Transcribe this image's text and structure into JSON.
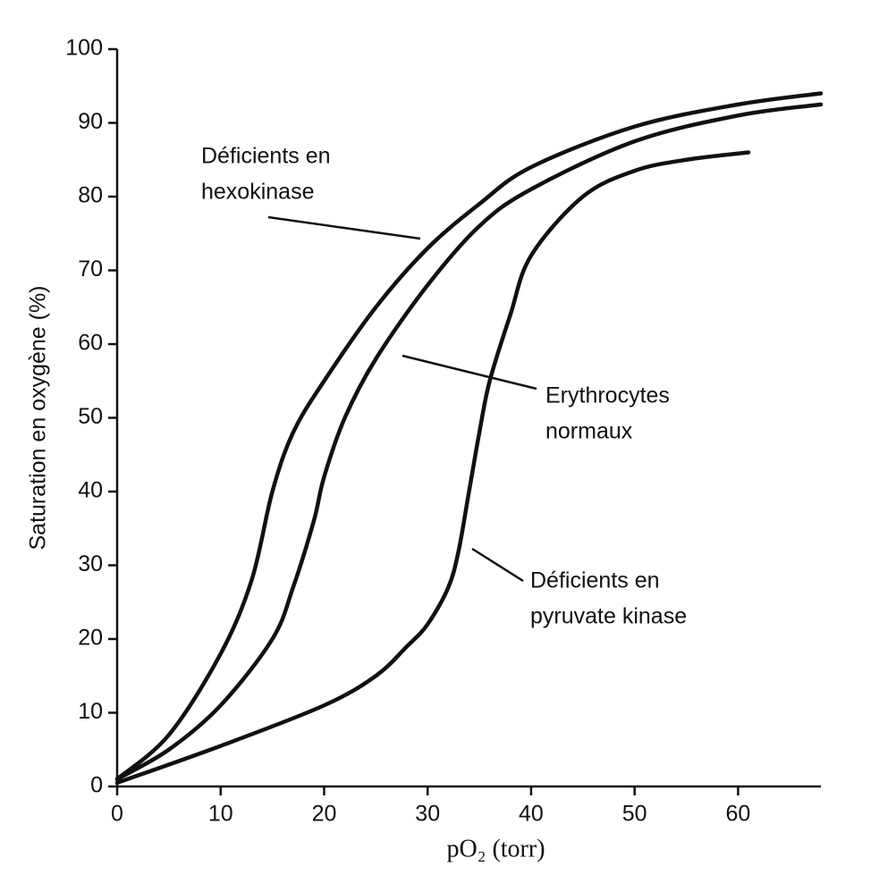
{
  "chart_data": {
    "type": "line",
    "xlabel": "pO₂ (torr)",
    "ylabel": "Saturation en oxygène (%)",
    "xlim": [
      0,
      68
    ],
    "ylim": [
      0,
      100
    ],
    "xticks": [
      0,
      10,
      20,
      30,
      40,
      50,
      60
    ],
    "yticks": [
      0,
      10,
      20,
      30,
      40,
      50,
      60,
      70,
      80,
      90,
      100
    ],
    "grid": false,
    "series": [
      {
        "name": "Déficients en hexokinase",
        "color": "#111111",
        "x": [
          0,
          5,
          10,
          13,
          15,
          17,
          20,
          25,
          30,
          35,
          40,
          50,
          60,
          68
        ],
        "values": [
          1,
          7,
          18,
          28,
          40,
          48,
          55,
          65,
          73,
          79,
          84,
          89.5,
          92.5,
          94
        ]
      },
      {
        "name": "Erythrocytes normaux",
        "color": "#111111",
        "x": [
          0,
          5,
          10,
          15,
          17,
          19,
          20,
          22,
          25,
          30,
          35,
          40,
          50,
          60,
          68
        ],
        "values": [
          1,
          5,
          11,
          20,
          27,
          36,
          42,
          50,
          58,
          68,
          76,
          81,
          87.5,
          91,
          92.5
        ]
      },
      {
        "name": "Déficients en pyruvate kinase",
        "color": "#111111",
        "x": [
          0,
          10,
          20,
          25,
          28,
          30,
          32,
          33,
          34,
          35,
          36,
          38,
          40,
          45,
          50,
          55,
          61
        ],
        "values": [
          0.5,
          5.5,
          11,
          15,
          19,
          22,
          27,
          32,
          40,
          48,
          55,
          64,
          72,
          80,
          83.5,
          85,
          86
        ]
      }
    ],
    "annotations": [
      {
        "lines": [
          "Déficients en",
          "hexokinase"
        ]
      },
      {
        "lines": [
          "Erythrocytes",
          "normaux"
        ]
      },
      {
        "lines": [
          "Déficients en",
          "pyruvate kinase"
        ]
      }
    ]
  }
}
